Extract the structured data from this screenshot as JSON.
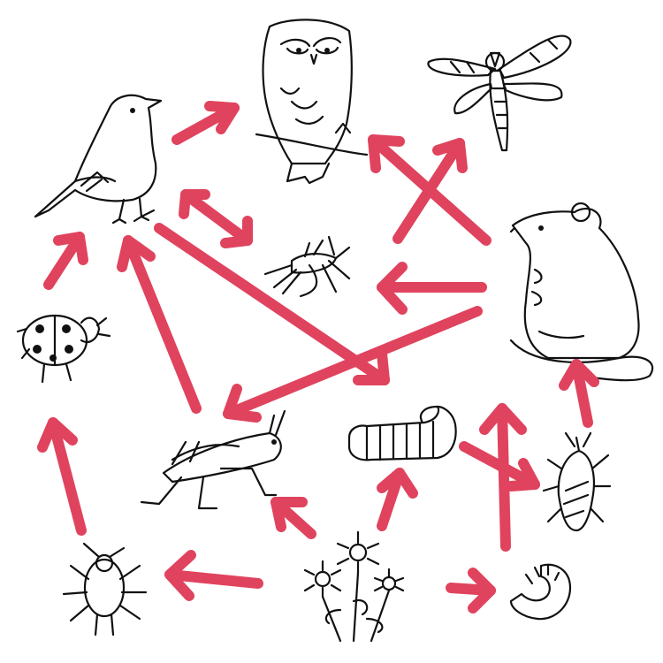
{
  "colors": {
    "arrow": "#e0435e",
    "ink": "#111111",
    "background": "#ffffff"
  },
  "organisms": [
    {
      "id": "songbird",
      "icon": "songbird-icon"
    },
    {
      "id": "owl",
      "icon": "owl-icon"
    },
    {
      "id": "dragonfly",
      "icon": "dragonfly-icon"
    },
    {
      "id": "mosquito",
      "icon": "mosquito-icon"
    },
    {
      "id": "mouse",
      "icon": "mouse-icon"
    },
    {
      "id": "ladybug",
      "icon": "ladybug-icon"
    },
    {
      "id": "grasshopper",
      "icon": "grasshopper-icon"
    },
    {
      "id": "caterpillar",
      "icon": "caterpillar-icon"
    },
    {
      "id": "stink-bug",
      "icon": "stink-bug-icon"
    },
    {
      "id": "aphid",
      "icon": "aphid-icon"
    },
    {
      "id": "flowers",
      "icon": "flowers-icon"
    },
    {
      "id": "grub",
      "icon": "grub-icon"
    }
  ],
  "links": [
    {
      "from": "songbird",
      "to": "owl"
    },
    {
      "from": "songbird",
      "to": "mosquito",
      "bidirectional": true
    },
    {
      "from": "songbird",
      "to": "caterpillar"
    },
    {
      "from": "mosquito",
      "to": "dragonfly"
    },
    {
      "from": "mouse",
      "to": "owl"
    },
    {
      "from": "mouse",
      "to": "mosquito"
    },
    {
      "from": "mouse",
      "to": "grasshopper"
    },
    {
      "from": "ladybug",
      "to": "songbird"
    },
    {
      "from": "grasshopper",
      "to": "songbird"
    },
    {
      "from": "aphid",
      "to": "ladybug"
    },
    {
      "from": "flowers",
      "to": "aphid"
    },
    {
      "from": "flowers",
      "to": "grasshopper"
    },
    {
      "from": "flowers",
      "to": "caterpillar"
    },
    {
      "from": "flowers",
      "to": "grub"
    },
    {
      "from": "caterpillar",
      "to": "stink-bug"
    },
    {
      "from": "stink-bug",
      "to": "mouse"
    },
    {
      "from": "grub",
      "to": "mouse"
    }
  ]
}
